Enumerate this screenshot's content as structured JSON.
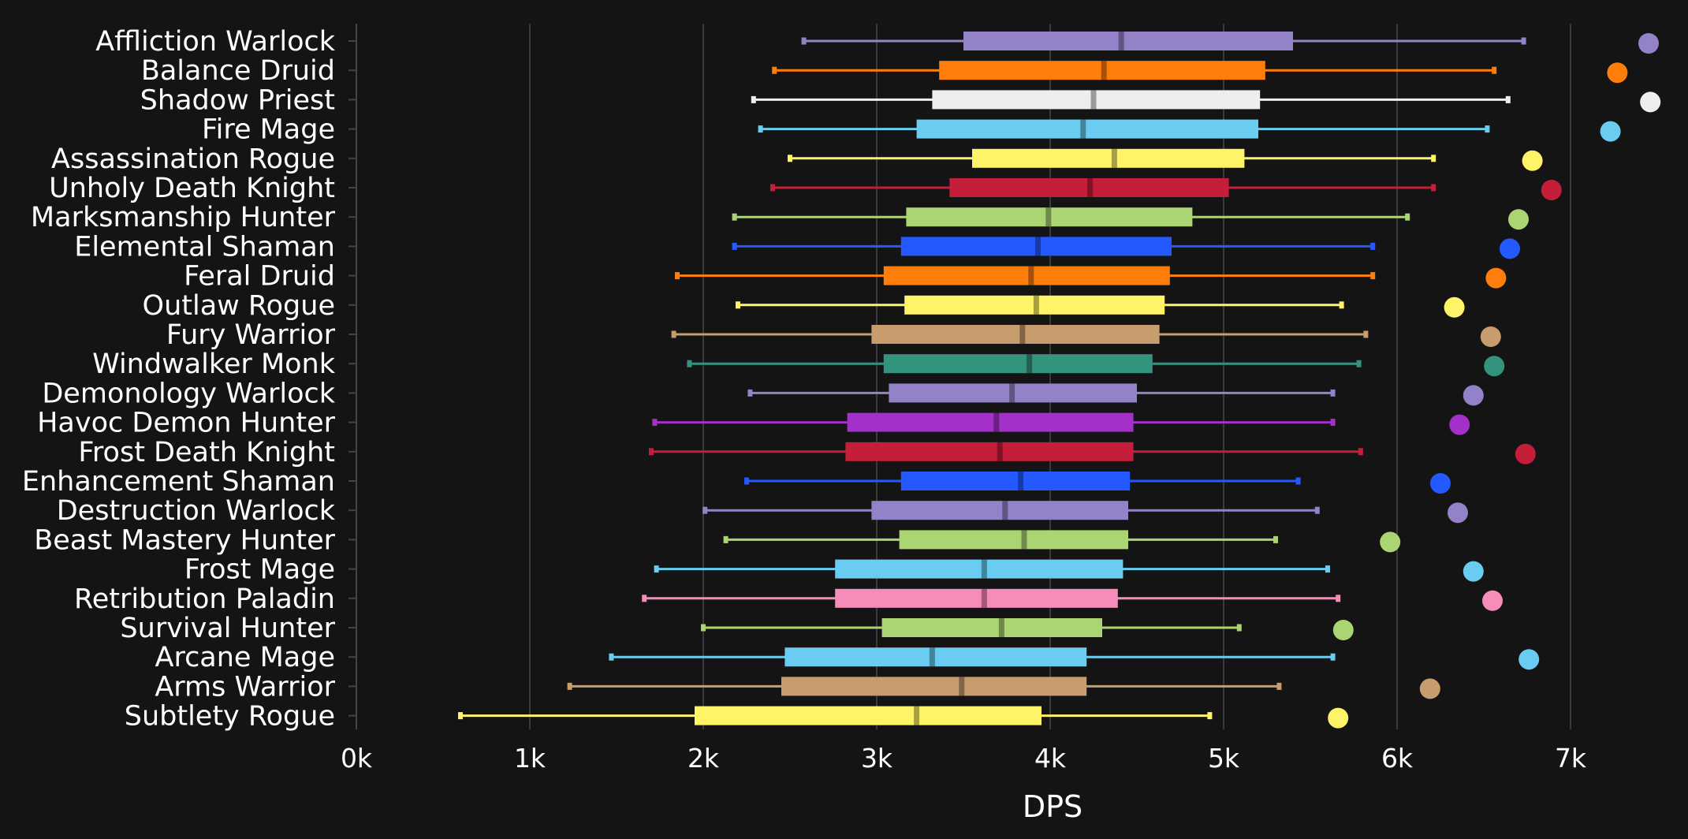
{
  "chart_data": {
    "type": "boxplot",
    "title": "",
    "xlabel": "DPS",
    "ylabel": "",
    "xlim": [
      0,
      7500
    ],
    "xticks": [
      0,
      1000,
      2000,
      3000,
      4000,
      5000,
      6000,
      7000
    ],
    "xtick_labels": [
      "0k",
      "1k",
      "2k",
      "3k",
      "4k",
      "5k",
      "6k",
      "7k"
    ],
    "grid": "vertical",
    "series": [
      {
        "name": "Affliction Warlock",
        "color": "#9482C9",
        "min": 2580,
        "q1": 3500,
        "median": 4410,
        "q3": 5400,
        "max": 6730,
        "max_point": 7450
      },
      {
        "name": "Balance Druid",
        "color": "#FF7D0A",
        "min": 2410,
        "q1": 3360,
        "median": 4310,
        "q3": 5240,
        "max": 6560,
        "max_point": 7270
      },
      {
        "name": "Shadow Priest",
        "color": "#EEEEEE",
        "min": 2290,
        "q1": 3320,
        "median": 4250,
        "q3": 5210,
        "max": 6640,
        "max_point": 7460
      },
      {
        "name": "Fire Mage",
        "color": "#69CCF0",
        "min": 2330,
        "q1": 3230,
        "median": 4190,
        "q3": 5200,
        "max": 6520,
        "max_point": 7230
      },
      {
        "name": "Assassination Rogue",
        "color": "#FFF468",
        "min": 2500,
        "q1": 3550,
        "median": 4370,
        "q3": 5120,
        "max": 6210,
        "max_point": 6780
      },
      {
        "name": "Unholy Death Knight",
        "color": "#C41E3A",
        "min": 2400,
        "q1": 3420,
        "median": 4230,
        "q3": 5030,
        "max": 6210,
        "max_point": 6890
      },
      {
        "name": "Marksmanship Hunter",
        "color": "#ABD473",
        "min": 2180,
        "q1": 3170,
        "median": 3990,
        "q3": 4820,
        "max": 6060,
        "max_point": 6700
      },
      {
        "name": "Elemental Shaman",
        "color": "#2459FF",
        "min": 2180,
        "q1": 3140,
        "median": 3930,
        "q3": 4700,
        "max": 5860,
        "max_point": 6650
      },
      {
        "name": "Feral Druid",
        "color": "#FF7D0A",
        "min": 1850,
        "q1": 3040,
        "median": 3890,
        "q3": 4690,
        "max": 5860,
        "max_point": 6570
      },
      {
        "name": "Outlaw Rogue",
        "color": "#FFF468",
        "min": 2200,
        "q1": 3160,
        "median": 3920,
        "q3": 4660,
        "max": 5680,
        "max_point": 6330
      },
      {
        "name": "Fury Warrior",
        "color": "#C79C6E",
        "min": 1830,
        "q1": 2970,
        "median": 3840,
        "q3": 4630,
        "max": 5820,
        "max_point": 6540
      },
      {
        "name": "Windwalker Monk",
        "color": "#33937F",
        "min": 1920,
        "q1": 3040,
        "median": 3880,
        "q3": 4590,
        "max": 5780,
        "max_point": 6560
      },
      {
        "name": "Demonology Warlock",
        "color": "#9482C9",
        "min": 2270,
        "q1": 3070,
        "median": 3780,
        "q3": 4500,
        "max": 5630,
        "max_point": 6440
      },
      {
        "name": "Havoc Demon Hunter",
        "color": "#A330C9",
        "min": 1720,
        "q1": 2830,
        "median": 3690,
        "q3": 4480,
        "max": 5630,
        "max_point": 6360
      },
      {
        "name": "Frost Death Knight",
        "color": "#C41E3A",
        "min": 1700,
        "q1": 2820,
        "median": 3710,
        "q3": 4480,
        "max": 5790,
        "max_point": 6740
      },
      {
        "name": "Enhancement Shaman",
        "color": "#2459FF",
        "min": 2250,
        "q1": 3140,
        "median": 3830,
        "q3": 4460,
        "max": 5430,
        "max_point": 6250
      },
      {
        "name": "Destruction Warlock",
        "color": "#9482C9",
        "min": 2010,
        "q1": 2970,
        "median": 3740,
        "q3": 4450,
        "max": 5540,
        "max_point": 6350
      },
      {
        "name": "Beast Mastery Hunter",
        "color": "#ABD473",
        "min": 2130,
        "q1": 3130,
        "median": 3850,
        "q3": 4450,
        "max": 5300,
        "max_point": 5960
      },
      {
        "name": "Frost Mage",
        "color": "#69CCF0",
        "min": 1730,
        "q1": 2760,
        "median": 3620,
        "q3": 4420,
        "max": 5600,
        "max_point": 6440
      },
      {
        "name": "Retribution Paladin",
        "color": "#F58CBA",
        "min": 1660,
        "q1": 2760,
        "median": 3620,
        "q3": 4390,
        "max": 5660,
        "max_point": 6550
      },
      {
        "name": "Survival Hunter",
        "color": "#ABD473",
        "min": 2000,
        "q1": 3030,
        "median": 3720,
        "q3": 4300,
        "max": 5090,
        "max_point": 5690
      },
      {
        "name": "Arcane Mage",
        "color": "#69CCF0",
        "min": 1470,
        "q1": 2470,
        "median": 3320,
        "q3": 4210,
        "max": 5630,
        "max_point": 6760
      },
      {
        "name": "Arms Warrior",
        "color": "#C79C6E",
        "min": 1230,
        "q1": 2450,
        "median": 3490,
        "q3": 4210,
        "max": 5320,
        "max_point": 6190
      },
      {
        "name": "Subtlety Rogue",
        "color": "#FFF468",
        "min": 600,
        "q1": 1950,
        "median": 3230,
        "q3": 3950,
        "max": 4920,
        "max_point": 5660
      }
    ]
  }
}
